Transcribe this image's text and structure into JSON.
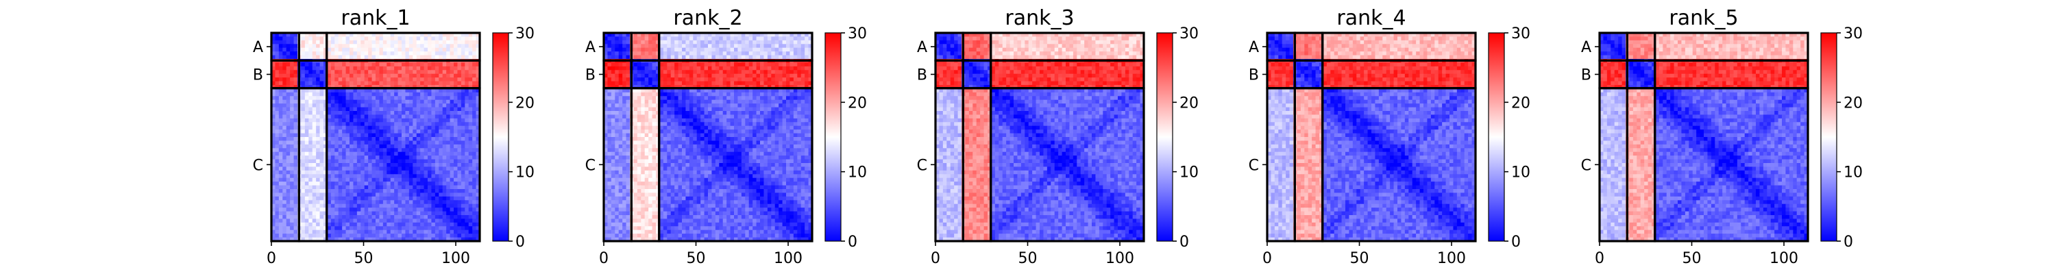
{
  "chart_data": [
    {
      "type": "heatmap",
      "title": "rank_1",
      "x_range": [
        0,
        113
      ],
      "x_ticks": [
        0,
        50,
        100
      ],
      "x_tick_labels": [
        "0",
        "50",
        "100"
      ],
      "chain_labels": [
        "A",
        "B",
        "C"
      ],
      "chain_bounds": [
        0,
        15,
        30,
        113
      ],
      "colorbar": {
        "min": 0,
        "max": 30,
        "ticks": [
          "0",
          "10",
          "20",
          "30"
        ],
        "colormap": "bwr"
      },
      "mean_pae": {
        "AA": 4,
        "AB": 16,
        "AC": 15,
        "BA": 27,
        "BB": 4,
        "BC": 25,
        "CA": 8,
        "CB": 13,
        "CC": 6
      },
      "diag_pae": 1
    },
    {
      "type": "heatmap",
      "title": "rank_2",
      "x_range": [
        0,
        113
      ],
      "x_ticks": [
        0,
        50,
        100
      ],
      "x_tick_labels": [
        "0",
        "50",
        "100"
      ],
      "chain_labels": [
        "A",
        "B",
        "C"
      ],
      "chain_bounds": [
        0,
        15,
        30,
        113
      ],
      "colorbar": {
        "min": 0,
        "max": 30,
        "ticks": [
          "0",
          "10",
          "20",
          "30"
        ],
        "colormap": "bwr"
      },
      "mean_pae": {
        "AA": 4,
        "AB": 23,
        "AC": 12,
        "BA": 28,
        "BB": 4,
        "BC": 27,
        "CA": 8,
        "CB": 17,
        "CC": 6
      },
      "diag_pae": 1
    },
    {
      "type": "heatmap",
      "title": "rank_3",
      "x_range": [
        0,
        113
      ],
      "x_ticks": [
        0,
        50,
        100
      ],
      "x_tick_labels": [
        "0",
        "50",
        "100"
      ],
      "chain_labels": [
        "A",
        "B",
        "C"
      ],
      "chain_bounds": [
        0,
        15,
        30,
        113
      ],
      "colorbar": {
        "min": 0,
        "max": 30,
        "ticks": [
          "0",
          "10",
          "20",
          "30"
        ],
        "colormap": "bwr"
      },
      "mean_pae": {
        "AA": 5,
        "AB": 24,
        "AC": 18,
        "BA": 27,
        "BB": 4,
        "BC": 27,
        "CA": 11,
        "CB": 22,
        "CC": 6
      },
      "diag_pae": 1
    },
    {
      "type": "heatmap",
      "title": "rank_4",
      "x_range": [
        0,
        113
      ],
      "x_ticks": [
        0,
        50,
        100
      ],
      "x_tick_labels": [
        "0",
        "50",
        "100"
      ],
      "chain_labels": [
        "A",
        "B",
        "C"
      ],
      "chain_bounds": [
        0,
        15,
        30,
        113
      ],
      "colorbar": {
        "min": 0,
        "max": 30,
        "ticks": [
          "0",
          "10",
          "20",
          "30"
        ],
        "colormap": "bwr"
      },
      "mean_pae": {
        "AA": 4,
        "AB": 23,
        "AC": 19,
        "BA": 27,
        "BB": 4,
        "BC": 27,
        "CA": 11,
        "CB": 20,
        "CC": 6
      },
      "diag_pae": 1
    },
    {
      "type": "heatmap",
      "title": "rank_5",
      "x_range": [
        0,
        113
      ],
      "x_ticks": [
        0,
        50,
        100
      ],
      "x_tick_labels": [
        "0",
        "50",
        "100"
      ],
      "chain_labels": [
        "A",
        "B",
        "C"
      ],
      "chain_bounds": [
        0,
        15,
        30,
        113
      ],
      "colorbar": {
        "min": 0,
        "max": 30,
        "ticks": [
          "0",
          "10",
          "20",
          "30"
        ],
        "colormap": "bwr"
      },
      "mean_pae": {
        "AA": 4,
        "AB": 22,
        "AC": 19,
        "BA": 27,
        "BB": 4,
        "BC": 27,
        "CA": 11,
        "CB": 20,
        "CC": 6
      },
      "diag_pae": 1
    }
  ]
}
